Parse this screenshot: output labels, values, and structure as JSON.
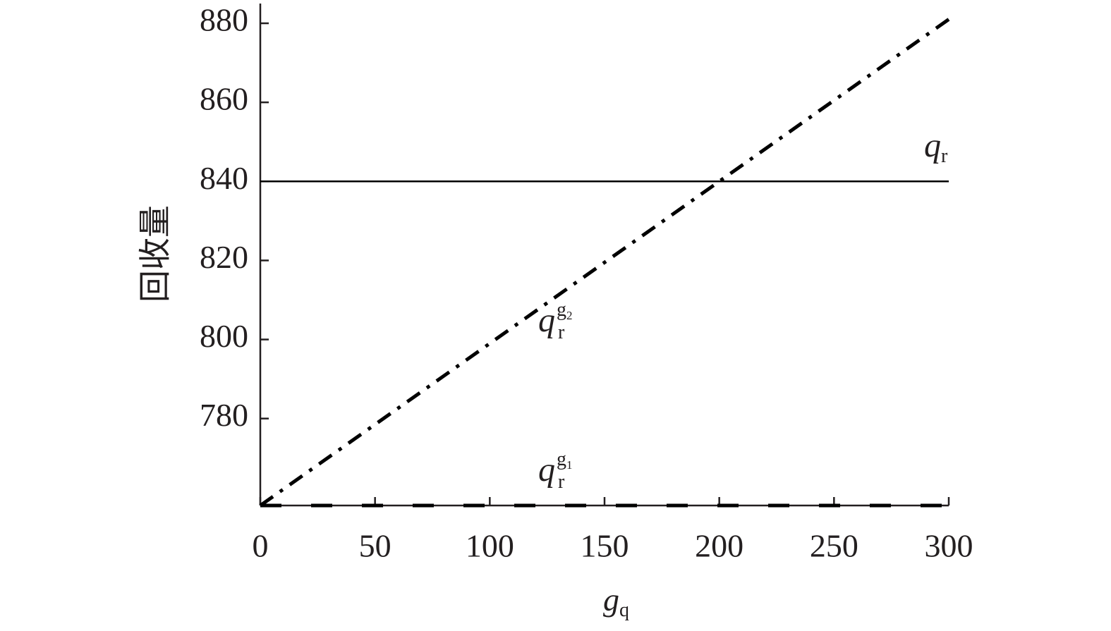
{
  "chart_data": {
    "type": "line",
    "x_label": {
      "base": "g",
      "sub": "q"
    },
    "y_label": "回收量",
    "x": [
      0,
      300
    ],
    "series": [
      {
        "label": {
          "base": "q",
          "sub": "r"
        },
        "color": "#000000",
        "style": "solid",
        "values": [
          840,
          840
        ]
      },
      {
        "label": {
          "base": "q",
          "sub": "r",
          "sup": "g",
          "sup_sub": "2"
        },
        "color": "#000000",
        "style": "dashdot",
        "values": [
          758,
          881
        ]
      },
      {
        "label": {
          "base": "q",
          "sub": "r",
          "sup": "g",
          "sup_sub": "1"
        },
        "color": "#000000",
        "style": "dashed",
        "values": [
          758,
          758
        ]
      }
    ],
    "xlim": [
      0,
      300
    ],
    "xticks": [
      0,
      50,
      100,
      150,
      200,
      250,
      300
    ],
    "ylim": [
      758,
      885
    ],
    "yticks": [
      780,
      800,
      820,
      840,
      860,
      880
    ]
  }
}
